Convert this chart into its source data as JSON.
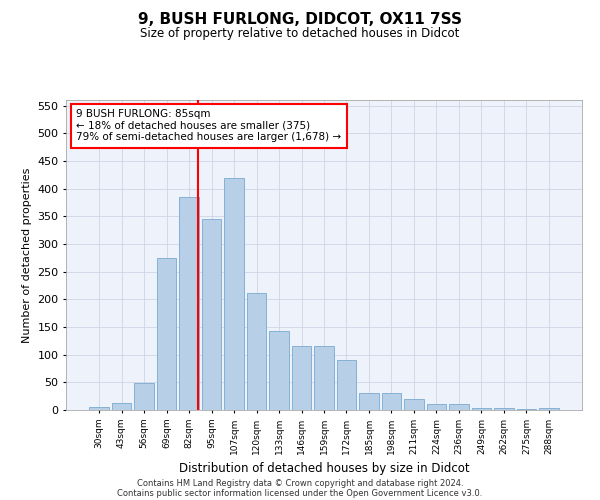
{
  "title": "9, BUSH FURLONG, DIDCOT, OX11 7SS",
  "subtitle": "Size of property relative to detached houses in Didcot",
  "xlabel": "Distribution of detached houses by size in Didcot",
  "ylabel": "Number of detached properties",
  "categories": [
    "30sqm",
    "43sqm",
    "56sqm",
    "69sqm",
    "82sqm",
    "95sqm",
    "107sqm",
    "120sqm",
    "133sqm",
    "146sqm",
    "159sqm",
    "172sqm",
    "185sqm",
    "198sqm",
    "211sqm",
    "224sqm",
    "236sqm",
    "249sqm",
    "262sqm",
    "275sqm",
    "288sqm"
  ],
  "values": [
    5,
    12,
    49,
    275,
    385,
    345,
    420,
    212,
    143,
    115,
    115,
    91,
    30,
    30,
    20,
    11,
    11,
    3,
    3,
    1,
    4
  ],
  "bar_color": "#b8cfe8",
  "bar_edge_color": "#7aaad0",
  "annotation_text": "9 BUSH FURLONG: 85sqm\n← 18% of detached houses are smaller (375)\n79% of semi-detached houses are larger (1,678) →",
  "annotation_box_color": "white",
  "annotation_box_edge_color": "red",
  "vline_color": "red",
  "vline_x_index": 4.42,
  "ylim": [
    0,
    560
  ],
  "yticks": [
    0,
    50,
    100,
    150,
    200,
    250,
    300,
    350,
    400,
    450,
    500,
    550
  ],
  "footer1": "Contains HM Land Registry data © Crown copyright and database right 2024.",
  "footer2": "Contains public sector information licensed under the Open Government Licence v3.0.",
  "background_color": "#eef2fb",
  "grid_color": "#c8cfe0"
}
